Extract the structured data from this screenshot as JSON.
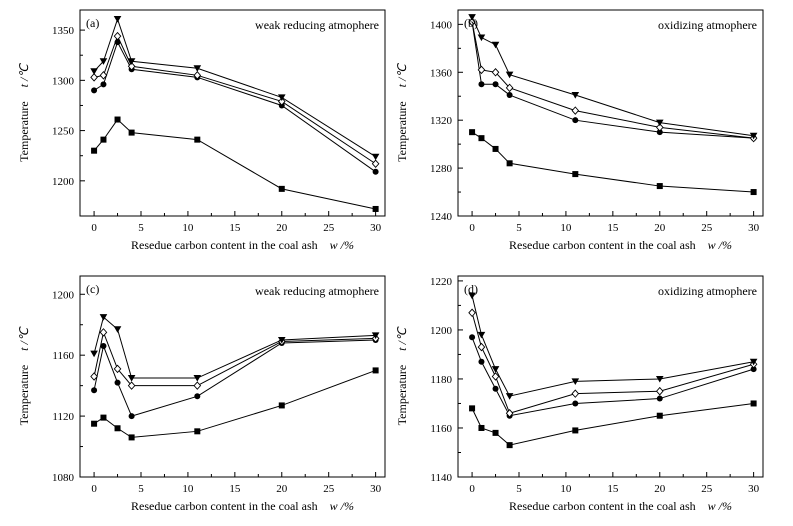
{
  "chart_data": [
    {
      "type": "line",
      "panel_label": "(a)",
      "annotation": "weak reducing atmophere",
      "xlabel": "Resedue carbon content in the coal ash",
      "xlabel_symbol": "w /%",
      "ylabel": "Temperature",
      "ylabel_symbol": "t /℃",
      "xlim": [
        -1.5,
        31
      ],
      "ylim": [
        1165,
        1370
      ],
      "xticks": [
        0,
        5,
        10,
        15,
        20,
        25,
        30
      ],
      "yticks": [
        1200,
        1250,
        1300,
        1350
      ],
      "x": [
        0,
        1,
        2.5,
        4,
        11,
        20,
        30
      ],
      "series": [
        {
          "marker": "square",
          "values": [
            1230,
            1241,
            1261,
            1248,
            1241,
            1192,
            1172
          ]
        },
        {
          "marker": "circle",
          "values": [
            1290,
            1296,
            1338,
            1311,
            1303,
            1275,
            1209
          ]
        },
        {
          "marker": "diamond",
          "values": [
            1303,
            1305,
            1344,
            1314,
            1305,
            1279,
            1217
          ]
        },
        {
          "marker": "triangle-down",
          "values": [
            1309,
            1319,
            1361,
            1319,
            1312,
            1283,
            1224
          ]
        }
      ]
    },
    {
      "type": "line",
      "panel_label": "(b)",
      "annotation": "oxidizing atmophere",
      "xlabel": "Resedue carbon content in the coal ash",
      "xlabel_symbol": "w /%",
      "ylabel": "Temperature",
      "ylabel_symbol": "t /℃",
      "xlim": [
        -1.5,
        31
      ],
      "ylim": [
        1240,
        1412
      ],
      "xticks": [
        0,
        5,
        10,
        15,
        20,
        25,
        30
      ],
      "yticks": [
        1240,
        1280,
        1320,
        1360,
        1400
      ],
      "x": [
        0,
        1,
        2.5,
        4,
        11,
        20,
        30
      ],
      "series": [
        {
          "marker": "square",
          "values": [
            1310,
            1305,
            1296,
            1284,
            1275,
            1265,
            1260
          ]
        },
        {
          "marker": "circle",
          "values": [
            1402,
            1350,
            1350,
            1341,
            1320,
            1310,
            1305
          ]
        },
        {
          "marker": "diamond",
          "values": [
            1402,
            1362,
            1360,
            1347,
            1328,
            1314,
            1305
          ]
        },
        {
          "marker": "triangle-down",
          "values": [
            1406,
            1389,
            1383,
            1358,
            1341,
            1318,
            1307
          ]
        }
      ]
    },
    {
      "type": "line",
      "panel_label": "(c)",
      "annotation": "weak reducing atmophere",
      "xlabel": "Resedue carbon content in the coal ash",
      "xlabel_symbol": "w /%",
      "ylabel": "Temperature",
      "ylabel_symbol": "t /℃",
      "xlim": [
        -1.5,
        31
      ],
      "ylim": [
        1080,
        1212
      ],
      "xticks": [
        0,
        5,
        10,
        15,
        20,
        25,
        30
      ],
      "yticks": [
        1080,
        1120,
        1160,
        1200
      ],
      "x": [
        0,
        1,
        2.5,
        4,
        11,
        20,
        30
      ],
      "series": [
        {
          "marker": "square",
          "values": [
            1115,
            1119,
            1112,
            1106,
            1110,
            1127,
            1150
          ]
        },
        {
          "marker": "circle",
          "values": [
            1137,
            1166,
            1142,
            1120,
            1133,
            1168,
            1170
          ]
        },
        {
          "marker": "diamond",
          "values": [
            1146,
            1175,
            1151,
            1140,
            1140,
            1169,
            1171
          ]
        },
        {
          "marker": "triangle-down",
          "values": [
            1161,
            1185,
            1177,
            1145,
            1145,
            1170,
            1173
          ]
        }
      ]
    },
    {
      "type": "line",
      "panel_label": "(d)",
      "annotation": "oxidizing atmophere",
      "xlabel": "Resedue carbon content in the coal ash",
      "xlabel_symbol": "w /%",
      "ylabel": "Temperature",
      "ylabel_symbol": "t /℃",
      "xlim": [
        -1.5,
        31
      ],
      "ylim": [
        1140,
        1222
      ],
      "xticks": [
        0,
        5,
        10,
        15,
        20,
        25,
        30
      ],
      "yticks": [
        1140,
        1160,
        1180,
        1200,
        1220
      ],
      "x": [
        0,
        1,
        2.5,
        4,
        11,
        20,
        30
      ],
      "series": [
        {
          "marker": "square",
          "values": [
            1168,
            1160,
            1158,
            1153,
            1159,
            1165,
            1170
          ]
        },
        {
          "marker": "circle",
          "values": [
            1197,
            1187,
            1176,
            1165,
            1170,
            1172,
            1184
          ]
        },
        {
          "marker": "diamond",
          "values": [
            1207,
            1193,
            1181,
            1166,
            1174,
            1175,
            1186
          ]
        },
        {
          "marker": "triangle-down",
          "values": [
            1214,
            1198,
            1184,
            1173,
            1179,
            1180,
            1187
          ]
        }
      ]
    }
  ]
}
